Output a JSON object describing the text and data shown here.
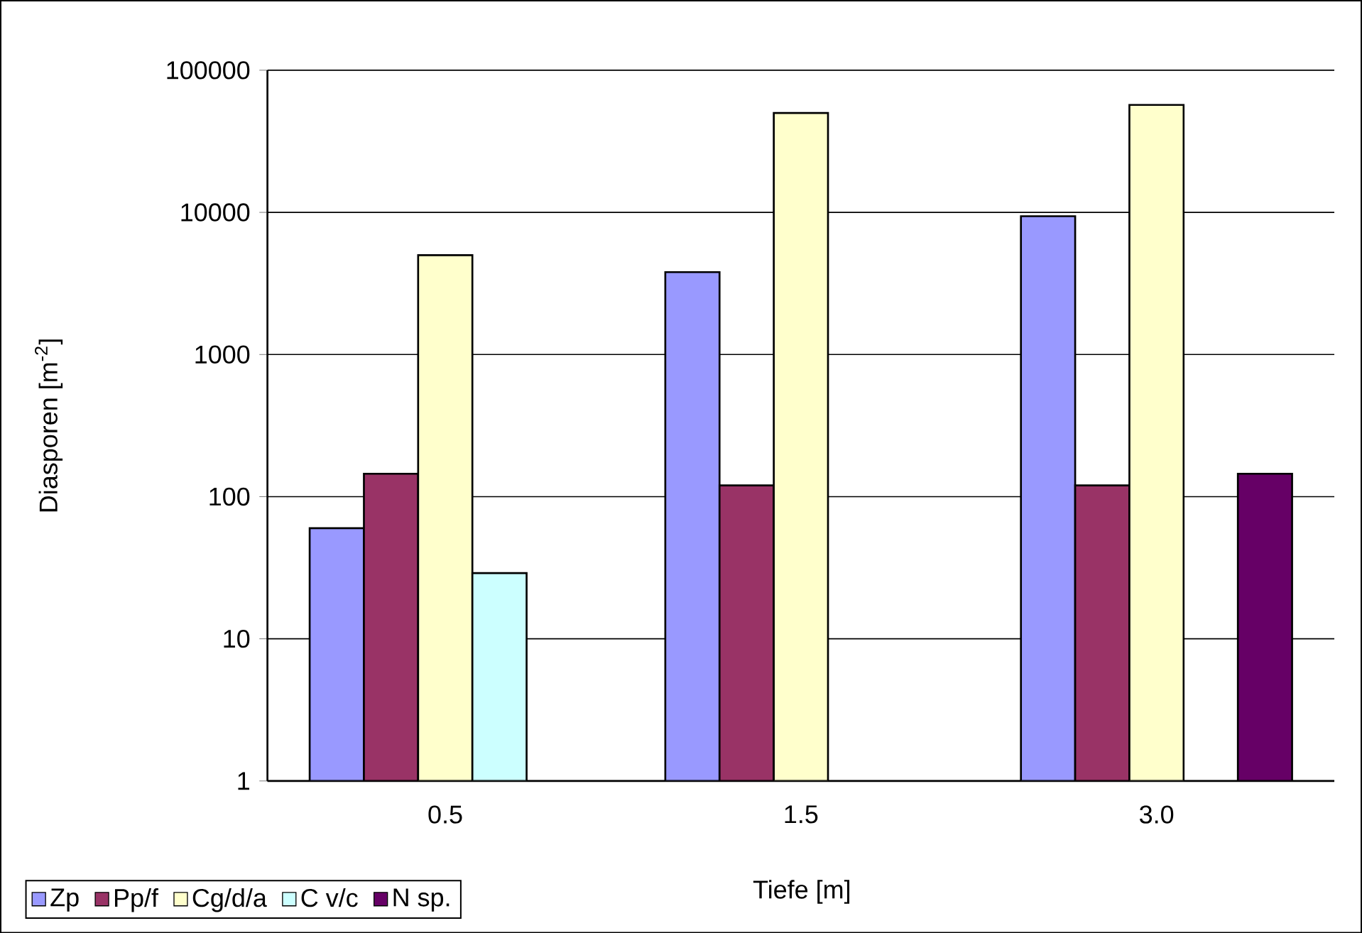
{
  "chart_data": {
    "type": "bar",
    "xlabel": "Tiefe [m]",
    "ylabel": "Diasporen [m$^{-2}$]",
    "categories": [
      "0.5",
      "1.5",
      "3.0"
    ],
    "series": [
      {
        "name": "Zp",
        "color": "#9999ff",
        "values": [
          60,
          3800,
          9400
        ]
      },
      {
        "name": "Pp/f",
        "color": "#993366",
        "values": [
          145,
          120,
          120
        ]
      },
      {
        "name": "Cg/d/a",
        "color": "#ffffcc",
        "values": [
          5000,
          50000,
          57000
        ]
      },
      {
        "name": "C v/c",
        "color": "#ccffff",
        "values": [
          29,
          null,
          null
        ]
      },
      {
        "name": "N sp.",
        "color": "#660066",
        "values": [
          null,
          null,
          145
        ]
      }
    ],
    "log": "y",
    "ylim": [
      1,
      100000
    ],
    "yticks": [
      1,
      10,
      100,
      1000,
      10000,
      100000
    ],
    "grid": "y",
    "legend": "bottom"
  }
}
